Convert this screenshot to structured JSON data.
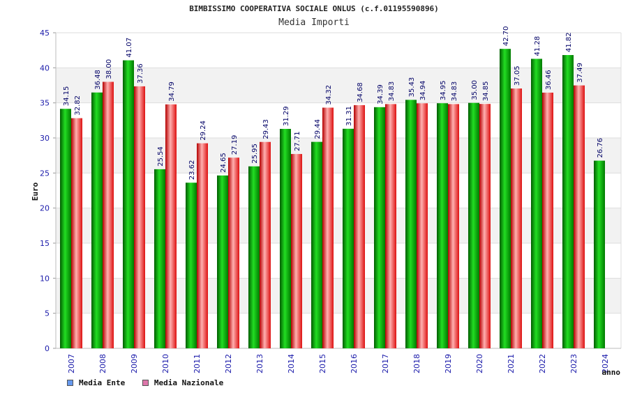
{
  "chart_data": {
    "type": "bar",
    "title": "BIMBISSIMO COOPERATIVA SOCIALE ONLUS (c.f.01195590896)",
    "subtitle": "Media Importi",
    "xlabel": "anno",
    "ylabel": "Euro",
    "ylim": [
      0,
      45
    ],
    "yticks": [
      "0",
      "5",
      "10",
      "15",
      "20",
      "25",
      "30",
      "35",
      "40",
      "45"
    ],
    "categories": [
      "2007",
      "2008",
      "2009",
      "2010",
      "2011",
      "2012",
      "2013",
      "2014",
      "2015",
      "2016",
      "2017",
      "2018",
      "2019",
      "2020",
      "2021",
      "2022",
      "2023",
      "2024"
    ],
    "series": [
      {
        "name": "Media Ente",
        "color": "#00aa00",
        "values": [
          34.15,
          36.48,
          41.07,
          25.54,
          23.62,
          24.65,
          25.95,
          31.29,
          29.44,
          31.31,
          34.39,
          35.43,
          34.95,
          35.0,
          42.7,
          41.28,
          41.82,
          26.76
        ],
        "labels": [
          "34.15",
          "36.48",
          "41.07",
          "25.54",
          "23.62",
          "24.65",
          "25.95",
          "31.29",
          "29.44",
          "31.31",
          "34.39",
          "35.43",
          "34.95",
          "35.00",
          "42.70",
          "41.28",
          "41.82",
          "26.76"
        ]
      },
      {
        "name": "Media Nazionale",
        "color": "#ee2222",
        "values": [
          32.82,
          38.0,
          37.36,
          34.79,
          29.24,
          27.19,
          29.43,
          27.71,
          34.32,
          34.68,
          34.83,
          34.94,
          34.83,
          34.85,
          37.05,
          36.46,
          37.49,
          null
        ],
        "labels": [
          "32.82",
          "38.00",
          "37.36",
          "34.79",
          "29.24",
          "27.19",
          "29.43",
          "27.71",
          "34.32",
          "34.68",
          "34.83",
          "34.94",
          "34.83",
          "34.85",
          "37.05",
          "36.46",
          "37.49",
          null
        ]
      }
    ],
    "legend": [
      {
        "label": "Media Ente",
        "color": "#6699ee"
      },
      {
        "label": "Media Nazionale",
        "color": "#dd77aa"
      }
    ],
    "legend_position": "bottom-left",
    "grid": true
  }
}
